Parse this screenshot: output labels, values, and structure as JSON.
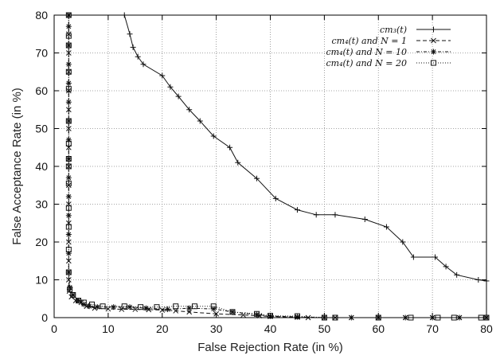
{
  "chart_data": {
    "type": "line",
    "xlabel": "False Rejection Rate (in %)",
    "ylabel": "False Acceptance Rate (in %)",
    "xlim": [
      0,
      80
    ],
    "ylim": [
      0,
      80
    ],
    "xticks": [
      0,
      10,
      20,
      30,
      40,
      50,
      60,
      70,
      80
    ],
    "yticks": [
      0,
      10,
      20,
      30,
      40,
      50,
      60,
      70,
      80
    ],
    "grid": true,
    "legend_position": "top-right",
    "series": [
      {
        "name": "cm₃(t)",
        "line_style": "solid",
        "marker": "plus",
        "points": [
          [
            13,
            80
          ],
          [
            14,
            75
          ],
          [
            14.6,
            71.5
          ],
          [
            15.5,
            69
          ],
          [
            16.5,
            67
          ],
          [
            20,
            64
          ],
          [
            21.5,
            61
          ],
          [
            23,
            58.5
          ],
          [
            25,
            55
          ],
          [
            27,
            52
          ],
          [
            29.5,
            48
          ],
          [
            32.5,
            45
          ],
          [
            34,
            41
          ],
          [
            37.5,
            36.8
          ],
          [
            41,
            31.5
          ],
          [
            45,
            28.5
          ],
          [
            48.5,
            27.2
          ],
          [
            52,
            27.2
          ],
          [
            57.5,
            26
          ],
          [
            61.5,
            24
          ],
          [
            64.5,
            20
          ],
          [
            66.5,
            16
          ],
          [
            70.5,
            16
          ],
          [
            72.5,
            13.5
          ],
          [
            74.5,
            11.3
          ],
          [
            78.5,
            10
          ],
          [
            80,
            9.7
          ]
        ]
      },
      {
        "name": "cm₄(t) and N = 1",
        "line_style": "dashed",
        "marker": "x",
        "points": [
          [
            2.7,
            80
          ],
          [
            2.7,
            75
          ],
          [
            2.7,
            70
          ],
          [
            2.7,
            65
          ],
          [
            2.7,
            60
          ],
          [
            2.7,
            55
          ],
          [
            2.7,
            50
          ],
          [
            2.7,
            45
          ],
          [
            2.7,
            40
          ],
          [
            2.7,
            35
          ],
          [
            2.7,
            30
          ],
          [
            2.7,
            25
          ],
          [
            2.7,
            20
          ],
          [
            2.7,
            15
          ],
          [
            2.7,
            10
          ],
          [
            2.8,
            7
          ],
          [
            3.2,
            5.5
          ],
          [
            4,
            4.5
          ],
          [
            5,
            4
          ],
          [
            6,
            3
          ],
          [
            7.5,
            2.5
          ],
          [
            10,
            2.3
          ],
          [
            12.5,
            2.2
          ],
          [
            15,
            2.2
          ],
          [
            17.5,
            2.1
          ],
          [
            20,
            2
          ],
          [
            22.5,
            1.8
          ],
          [
            25,
            1.5
          ],
          [
            30,
            1
          ],
          [
            35,
            0.7
          ],
          [
            38,
            0.5
          ],
          [
            40,
            0.3
          ],
          [
            45,
            0.1
          ],
          [
            47,
            0
          ],
          [
            52,
            0
          ],
          [
            55,
            0
          ],
          [
            60,
            0
          ],
          [
            65,
            0
          ],
          [
            70,
            0
          ],
          [
            75,
            0
          ],
          [
            80,
            0
          ]
        ]
      },
      {
        "name": "cm₄(t) and N = 10",
        "line_style": "dash-dot",
        "marker": "star",
        "points": [
          [
            2.7,
            80
          ],
          [
            2.7,
            77
          ],
          [
            2.7,
            72
          ],
          [
            2.7,
            67
          ],
          [
            2.7,
            62
          ],
          [
            2.7,
            57
          ],
          [
            2.7,
            52
          ],
          [
            2.7,
            47
          ],
          [
            2.7,
            42
          ],
          [
            2.7,
            37
          ],
          [
            2.7,
            32
          ],
          [
            2.7,
            27
          ],
          [
            2.7,
            22
          ],
          [
            2.7,
            17
          ],
          [
            2.7,
            12
          ],
          [
            2.9,
            8
          ],
          [
            3.5,
            6
          ],
          [
            4.5,
            4.5
          ],
          [
            5.5,
            3.5
          ],
          [
            6.5,
            3
          ],
          [
            8,
            2.8
          ],
          [
            11,
            2.8
          ],
          [
            14,
            2.8
          ],
          [
            17,
            2.5
          ],
          [
            21,
            2.2
          ],
          [
            25,
            2.5
          ],
          [
            29.5,
            2.3
          ],
          [
            33,
            1.5
          ],
          [
            37.5,
            0.8
          ],
          [
            40,
            0.4
          ],
          [
            45,
            0.2
          ],
          [
            50,
            0
          ],
          [
            55,
            0
          ],
          [
            60,
            0
          ],
          [
            65,
            0
          ],
          [
            70,
            0
          ],
          [
            75,
            0
          ],
          [
            80,
            0
          ]
        ]
      },
      {
        "name": "cm₄(t) and N = 20",
        "line_style": "dotted",
        "marker": "square",
        "points": [
          [
            2.7,
            80
          ],
          [
            2.7,
            74.5
          ],
          [
            2.7,
            72
          ],
          [
            2.7,
            65
          ],
          [
            2.7,
            60.5
          ],
          [
            2.7,
            52
          ],
          [
            2.7,
            46
          ],
          [
            2.7,
            42
          ],
          [
            2.7,
            40
          ],
          [
            2.7,
            35.5
          ],
          [
            2.7,
            29
          ],
          [
            2.7,
            24
          ],
          [
            2.7,
            18
          ],
          [
            2.7,
            12
          ],
          [
            2.9,
            7.5
          ],
          [
            3.5,
            6
          ],
          [
            4.5,
            4.5
          ],
          [
            5.5,
            4
          ],
          [
            7,
            3.5
          ],
          [
            9,
            3
          ],
          [
            13,
            3
          ],
          [
            16,
            2.8
          ],
          [
            19,
            2.8
          ],
          [
            22.5,
            3
          ],
          [
            26,
            3
          ],
          [
            29.5,
            3
          ],
          [
            33,
            1.5
          ],
          [
            37.5,
            1
          ],
          [
            40,
            0.5
          ],
          [
            45,
            0.4
          ],
          [
            50,
            0
          ],
          [
            52,
            0
          ],
          [
            60,
            0
          ],
          [
            66,
            0
          ],
          [
            71,
            0
          ],
          [
            74,
            0
          ],
          [
            79,
            0
          ],
          [
            80,
            0
          ]
        ]
      }
    ]
  }
}
